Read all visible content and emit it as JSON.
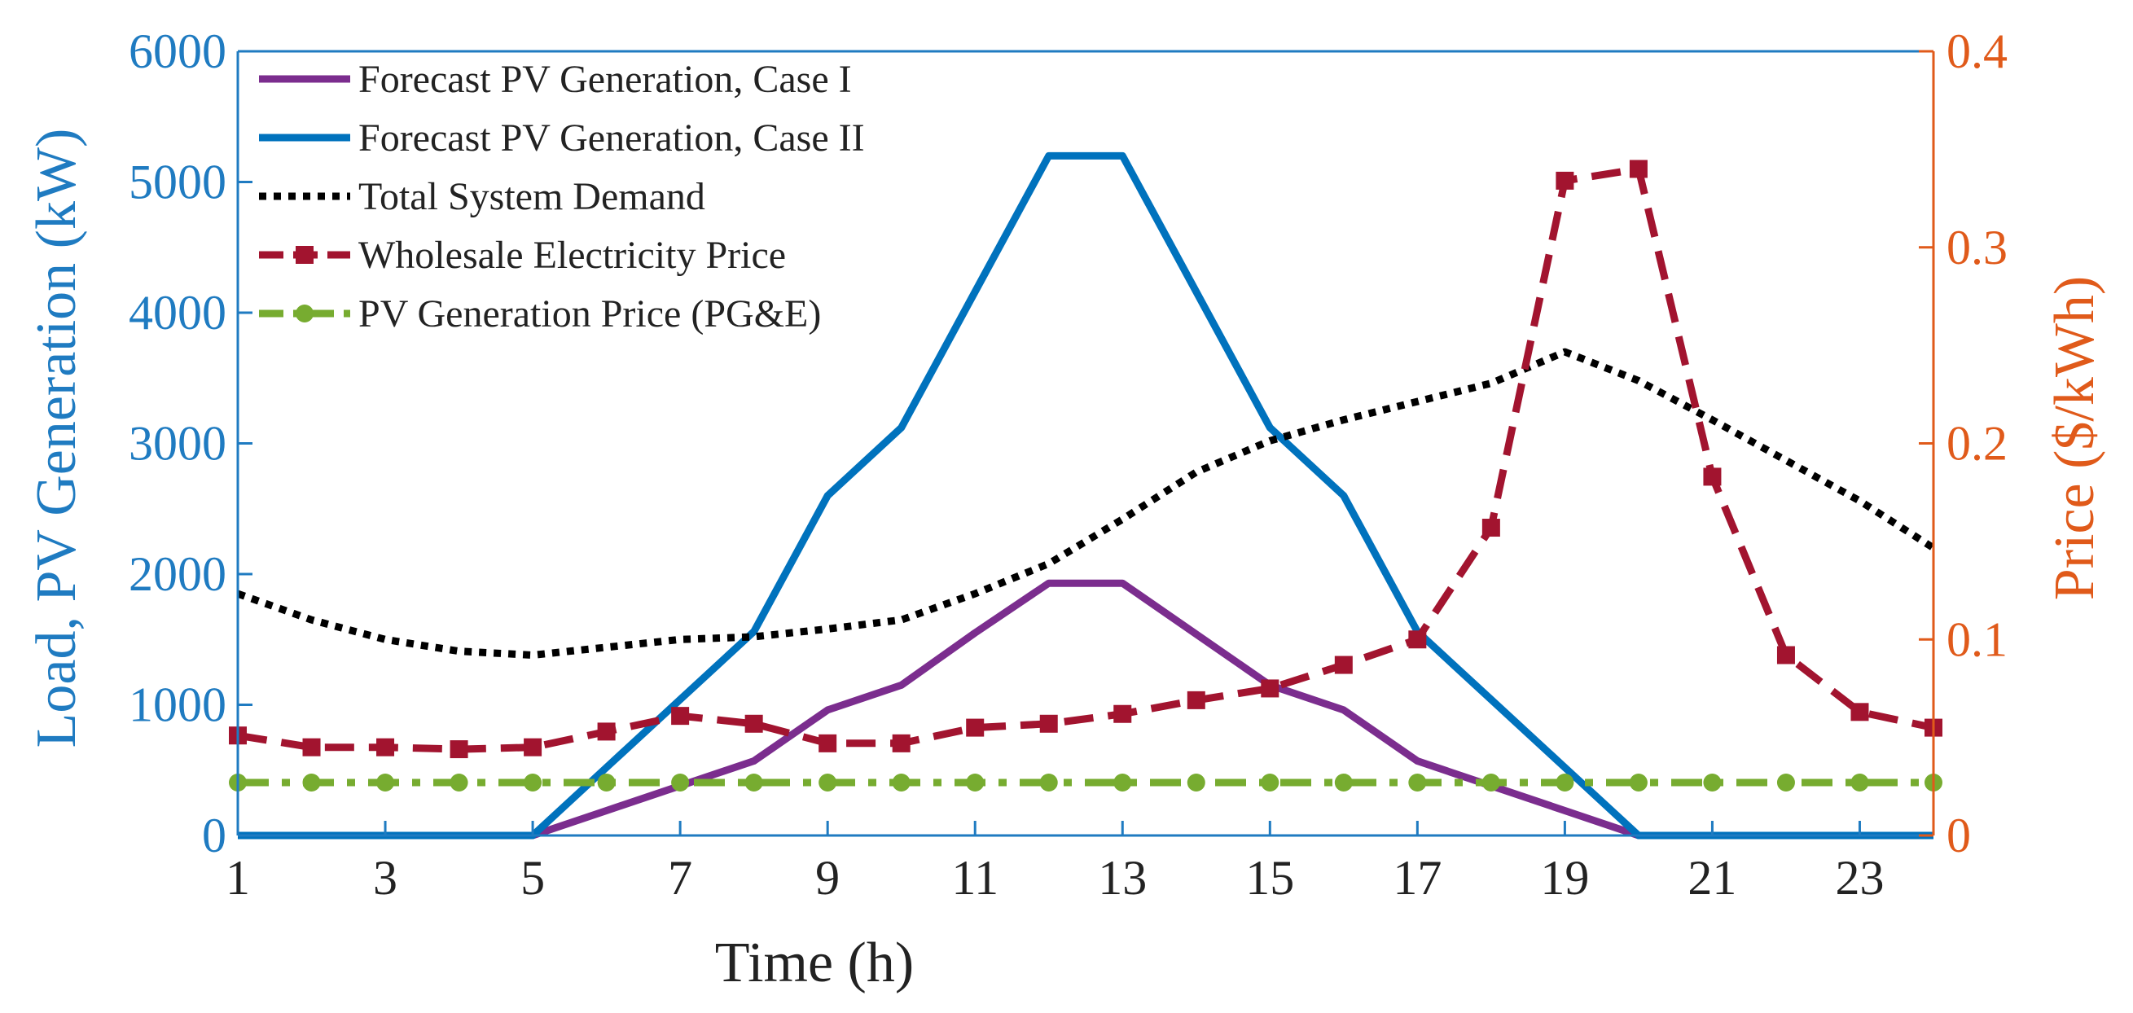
{
  "chart_data": {
    "type": "line",
    "title": "",
    "xlabel": "Time (h)",
    "ylabel_left": "Load, PV Generation (kW)",
    "ylabel_right": "Price ($/kWh)",
    "xlim": [
      1,
      24
    ],
    "ylim_left": [
      0,
      6000
    ],
    "ylim_right": [
      0,
      0.4
    ],
    "x_ticks": [
      1,
      3,
      5,
      7,
      9,
      11,
      13,
      15,
      17,
      19,
      21,
      23
    ],
    "y_ticks_left": [
      0,
      1000,
      2000,
      3000,
      4000,
      5000,
      6000
    ],
    "y_ticks_right": [
      0,
      0.1,
      0.2,
      0.3,
      0.4
    ],
    "grid": false,
    "legend_position": "top-left",
    "colors": {
      "left_axis": "#1f7bc1",
      "right_axis": "#e05a1a",
      "axes_box": "#1f7bc1"
    },
    "x": [
      1,
      2,
      3,
      4,
      5,
      6,
      7,
      8,
      9,
      10,
      11,
      12,
      13,
      14,
      15,
      16,
      17,
      18,
      19,
      20,
      21,
      22,
      23,
      24
    ],
    "series": [
      {
        "name": "Forecast PV Generation, Case I",
        "axis": "left",
        "color": "#7b2d8e",
        "style": "solid",
        "marker": "none",
        "values": [
          0,
          0,
          0,
          0,
          0,
          190,
          380,
          570,
          960,
          1150,
          1550,
          1930,
          1930,
          1540,
          1150,
          960,
          570,
          380,
          190,
          0,
          0,
          0,
          0,
          0
        ]
      },
      {
        "name": "Forecast PV Generation, Case II",
        "axis": "left",
        "color": "#0072bd",
        "style": "solid",
        "marker": "none",
        "values": [
          0,
          0,
          0,
          0,
          0,
          520,
          1040,
          1560,
          2600,
          3120,
          4160,
          5200,
          5200,
          4160,
          3120,
          2600,
          1560,
          1040,
          520,
          0,
          0,
          0,
          0,
          0
        ]
      },
      {
        "name": "Total System Demand",
        "axis": "left",
        "color": "#000000",
        "style": "dotted",
        "marker": "none",
        "values": [
          1850,
          1650,
          1500,
          1410,
          1380,
          1440,
          1500,
          1520,
          1580,
          1650,
          1850,
          2080,
          2420,
          2780,
          3020,
          3180,
          3320,
          3460,
          3700,
          3480,
          3180,
          2870,
          2560,
          2200
        ]
      },
      {
        "name": "Wholesale Electricity Price",
        "axis": "right",
        "color": "#a2142f",
        "style": "dashed",
        "marker": "square",
        "values": [
          0.051,
          0.045,
          0.045,
          0.044,
          0.045,
          0.053,
          0.061,
          0.057,
          0.047,
          0.047,
          0.055,
          0.057,
          0.062,
          0.069,
          0.075,
          0.087,
          0.1,
          0.157,
          0.334,
          0.34,
          0.183,
          0.092,
          0.063,
          0.055
        ]
      },
      {
        "name": "PV Generation Price (PG&E)",
        "axis": "right",
        "color": "#77ac30",
        "style": "dashdot",
        "marker": "circle",
        "values": [
          0.027,
          0.027,
          0.027,
          0.027,
          0.027,
          0.027,
          0.027,
          0.027,
          0.027,
          0.027,
          0.027,
          0.027,
          0.027,
          0.027,
          0.027,
          0.027,
          0.027,
          0.027,
          0.027,
          0.027,
          0.027,
          0.027,
          0.027,
          0.027
        ]
      }
    ]
  }
}
